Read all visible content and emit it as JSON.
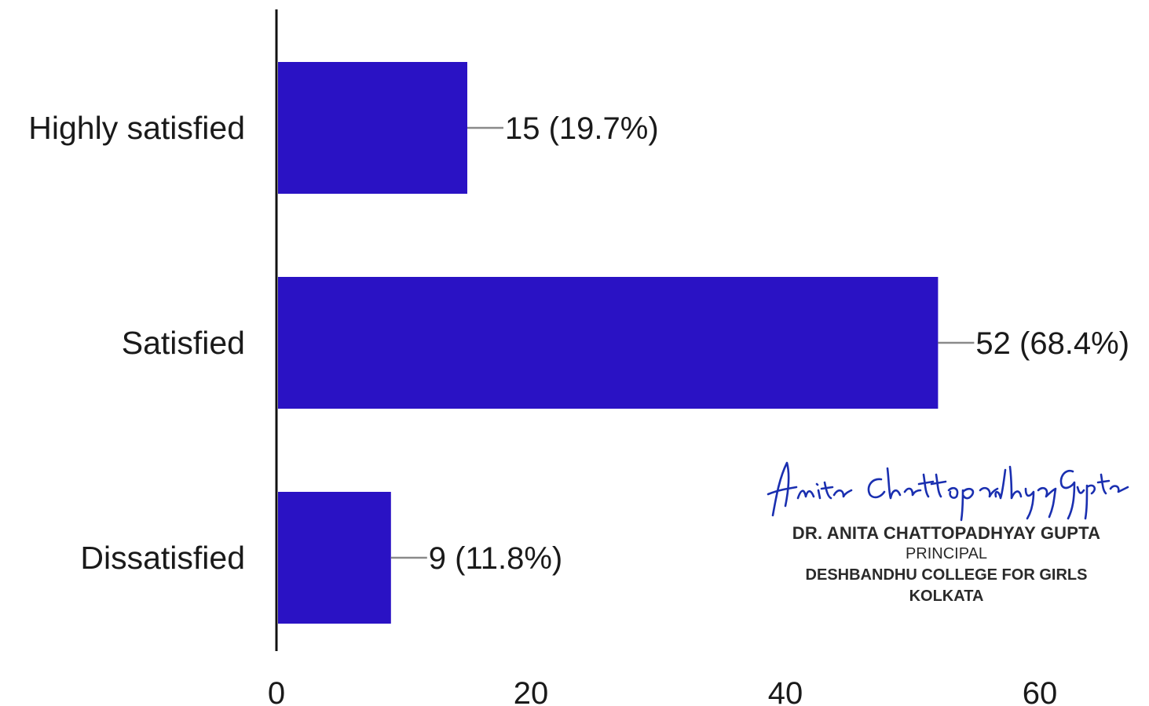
{
  "chart_data": {
    "type": "bar",
    "orientation": "horizontal",
    "categories": [
      "Highly satisfied",
      "Satisfied",
      "Dissatisfied"
    ],
    "values": [
      15,
      52,
      9
    ],
    "data_labels": [
      "15 (19.7%)",
      "52 (68.4%)",
      "9 (11.8%)"
    ],
    "xlim": [
      0,
      60
    ],
    "xticks": [
      "0",
      "20",
      "40",
      "60"
    ],
    "grid": false,
    "legend": "none",
    "bar_color": "#2a12c4",
    "title": "",
    "xlabel": "",
    "ylabel": ""
  },
  "signature_block": {
    "signature": "Anita Chattopadhyay Gupta",
    "name": "DR. ANITA CHATTOPADHYAY GUPTA",
    "designation": "PRINCIPAL",
    "institution": "DESHBANDHU COLLEGE FOR GIRLS",
    "city": "KOLKATA",
    "ink_color": "#1a2fb0"
  }
}
